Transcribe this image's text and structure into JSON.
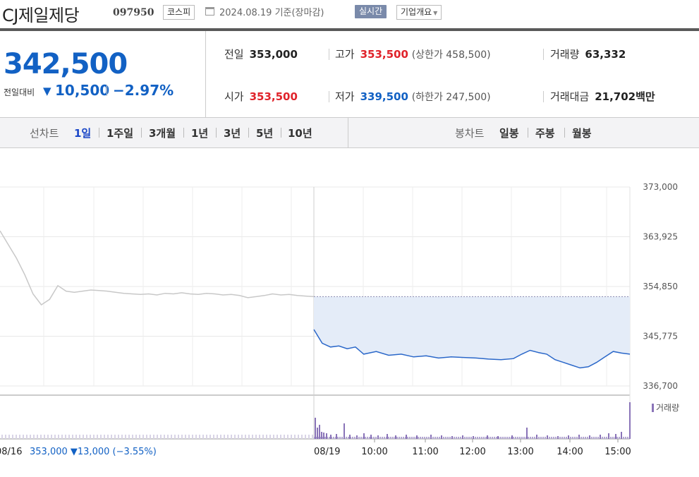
{
  "header": {
    "stock_name": "CJ제일제당",
    "stock_code": "097950",
    "market": "코스피",
    "date_basis": "2024.08.19 기준(장마감)",
    "realtime_label": "실시간",
    "overview_label": "기업개요",
    "calendar_icon": "calendar-icon"
  },
  "price": {
    "current": "342,500",
    "compare_label": "전일대비",
    "change_direction": "down",
    "change_value": "10,500",
    "change_pct": "−2.97%",
    "color_down": "#1261c4",
    "color_up": "#e0232b"
  },
  "stats": {
    "prev_close": {
      "label": "전일",
      "value": "353,000"
    },
    "high": {
      "label": "고가",
      "value": "353,500",
      "limit_label": "(상한가 458,500)"
    },
    "volume": {
      "label": "거래량",
      "value": "63,332"
    },
    "open": {
      "label": "시가",
      "value": "353,500"
    },
    "low": {
      "label": "저가",
      "value": "339,500",
      "limit_label": "(하한가 247,500)"
    },
    "trade_value": {
      "label": "거래대금",
      "value": "21,702",
      "unit": "백만"
    }
  },
  "tabs": {
    "line_label": "선차트",
    "line_periods": [
      "1일",
      "1주일",
      "3개월",
      "1년",
      "3년",
      "5년",
      "10년"
    ],
    "active_period": "1일",
    "candle_label": "봉차트",
    "candle_periods": [
      "일봉",
      "주봉",
      "월봉"
    ]
  },
  "chart_data": {
    "type": "line",
    "y_ticks": [
      "373,000",
      "363,925",
      "354,850",
      "345,775",
      "336,700"
    ],
    "ylim": [
      336700,
      373000
    ],
    "reference_price": 353000,
    "prev_day": {
      "date": "08/16",
      "summary": "353,000 ▼13,000 (−3.55%)",
      "color": "#c8c8c8",
      "values": [
        365000,
        362500,
        360000,
        357000,
        353500,
        351500,
        352500,
        355000,
        354000,
        353800,
        354000,
        354200,
        354100,
        354000,
        353800,
        353600,
        353500,
        353400,
        353500,
        353300,
        353600,
        353500,
        353700,
        353500,
        353400,
        353600,
        353500,
        353300,
        353400,
        353200,
        352800,
        353000,
        353200,
        353500,
        353300,
        353400,
        353200,
        353100,
        353000
      ]
    },
    "today": {
      "date": "08/19",
      "color": "#2a67c9",
      "fill": "#e4ecf8",
      "x_labels": [
        "10:00",
        "11:00",
        "12:00",
        "13:00",
        "14:00",
        "15:00"
      ],
      "times": [
        "09:00",
        "09:10",
        "09:20",
        "09:30",
        "09:40",
        "09:50",
        "10:00",
        "10:15",
        "10:30",
        "10:45",
        "11:00",
        "11:15",
        "11:30",
        "11:45",
        "12:00",
        "12:15",
        "12:30",
        "12:45",
        "13:00",
        "13:10",
        "13:20",
        "13:30",
        "13:40",
        "13:50",
        "14:00",
        "14:10",
        "14:20",
        "14:30",
        "14:40",
        "14:50",
        "15:00",
        "15:10",
        "15:20"
      ],
      "values": [
        347000,
        344500,
        343800,
        344000,
        343500,
        343800,
        342500,
        343000,
        342300,
        342500,
        342000,
        342200,
        341800,
        342000,
        341900,
        341800,
        341600,
        341500,
        341700,
        342500,
        343200,
        342800,
        342500,
        341500,
        341000,
        340500,
        340000,
        340200,
        341000,
        342000,
        343000,
        342700,
        342500
      ]
    },
    "volume": {
      "legend": "거래량",
      "color": "#8a74b8"
    }
  }
}
